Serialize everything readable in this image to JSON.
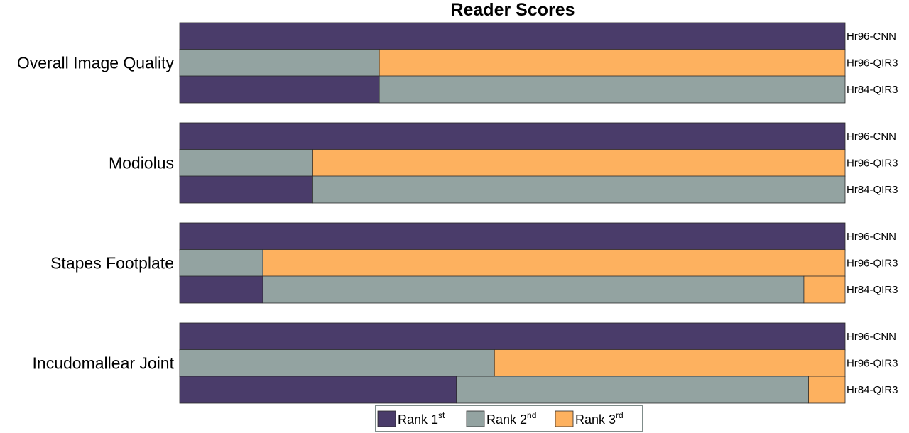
{
  "chart_data": {
    "type": "bar",
    "orientation": "horizontal-stacked",
    "title": "Reader Scores",
    "xlim": [
      0,
      100
    ],
    "grid": false,
    "legend_position": "bottom-center",
    "colors": {
      "rank1": "#4a3c6a",
      "rank2": "#93a3a1",
      "rank3": "#fdb15f"
    },
    "legend": [
      {
        "key": "rank1",
        "base": "Rank 1",
        "sup": "st"
      },
      {
        "key": "rank2",
        "base": "Rank 2",
        "sup": "nd"
      },
      {
        "key": "rank3",
        "base": "Rank 3",
        "sup": "rd"
      }
    ],
    "groups": [
      {
        "label": "Overall Image Quality",
        "bars": [
          {
            "label": "Hr96-CNN",
            "rank1": 100,
            "rank2": 0,
            "rank3": 0
          },
          {
            "label": "Hr96-QIR3",
            "rank1": 0,
            "rank2": 30,
            "rank3": 70
          },
          {
            "label": "Hr84-QIR3",
            "rank1": 30,
            "rank2": 70,
            "rank3": 0
          }
        ]
      },
      {
        "label": "Modiolus",
        "bars": [
          {
            "label": "Hr96-CNN",
            "rank1": 100,
            "rank2": 0,
            "rank3": 0
          },
          {
            "label": "Hr96-QIR3",
            "rank1": 0,
            "rank2": 20,
            "rank3": 80
          },
          {
            "label": "Hr84-QIR3",
            "rank1": 20,
            "rank2": 80,
            "rank3": 0
          }
        ]
      },
      {
        "label": "Stapes Footplate",
        "bars": [
          {
            "label": "Hr96-CNN",
            "rank1": 100,
            "rank2": 0,
            "rank3": 0
          },
          {
            "label": "Hr96-QIR3",
            "rank1": 0,
            "rank2": 12.5,
            "rank3": 87.5
          },
          {
            "label": "Hr84-QIR3",
            "rank1": 12.5,
            "rank2": 81.3,
            "rank3": 6.2
          }
        ]
      },
      {
        "label": "Incudomallear Joint",
        "bars": [
          {
            "label": "Hr96-CNN",
            "rank1": 100,
            "rank2": 0,
            "rank3": 0
          },
          {
            "label": "Hr96-QIR3",
            "rank1": 0,
            "rank2": 47.3,
            "rank3": 52.7
          },
          {
            "label": "Hr84-QIR3",
            "rank1": 41.6,
            "rank2": 52.9,
            "rank3": 5.5
          }
        ]
      }
    ]
  }
}
